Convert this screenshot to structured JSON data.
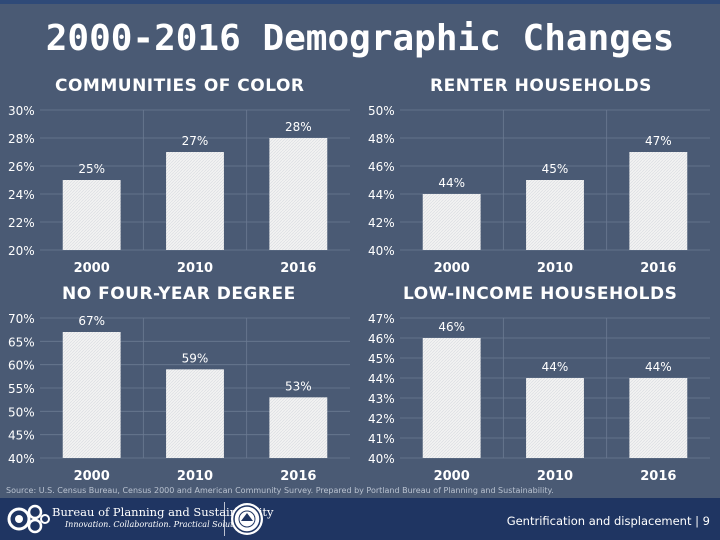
{
  "slide": {
    "title": "2000-2016 Demographic Changes",
    "source": "Source: U.S. Census Bureau, Census 2000 and American Community Survey. Prepared by Portland Bureau of Planning and Sustainability.",
    "footer_text": "Gentrification and displacement | 9",
    "org_name": "Bureau of Planning and Sustainability",
    "org_tagline": "Innovation. Collaboration. Practical Solutions."
  },
  "colors": {
    "background": "#4a5a74",
    "bar": "#f2f2f2",
    "grid": "#6b7a92",
    "footer": "#1f3562"
  },
  "chart_data": [
    {
      "type": "bar",
      "title": "COMMUNITIES OF COLOR",
      "categories": [
        "2000",
        "2010",
        "2016"
      ],
      "values": [
        25,
        27,
        28
      ],
      "labels": [
        "25%",
        "27%",
        "28%"
      ],
      "ylim": [
        20,
        30
      ],
      "yticks": [
        20,
        22,
        24,
        26,
        28,
        30
      ],
      "ytick_labels": [
        "20%",
        "22%",
        "24%",
        "26%",
        "28%",
        "30%"
      ]
    },
    {
      "type": "bar",
      "title": "RENTER HOUSEHOLDS",
      "categories": [
        "2000",
        "2010",
        "2016"
      ],
      "values": [
        44,
        45,
        47
      ],
      "labels": [
        "44%",
        "45%",
        "47%"
      ],
      "ylim": [
        40,
        50
      ],
      "yticks": [
        40,
        42,
        44,
        46,
        48,
        50
      ],
      "ytick_labels": [
        "40%",
        "42%",
        "44%",
        "46%",
        "48%",
        "50%"
      ]
    },
    {
      "type": "bar",
      "title": "NO FOUR-YEAR DEGREE",
      "categories": [
        "2000",
        "2010",
        "2016"
      ],
      "values": [
        67,
        59,
        53
      ],
      "labels": [
        "67%",
        "59%",
        "53%"
      ],
      "ylim": [
        40,
        70
      ],
      "yticks": [
        40,
        45,
        50,
        55,
        60,
        65,
        70
      ],
      "ytick_labels": [
        "40%",
        "45%",
        "50%",
        "55%",
        "60%",
        "65%",
        "70%"
      ]
    },
    {
      "type": "bar",
      "title": "LOW-INCOME HOUSEHOLDS",
      "categories": [
        "2000",
        "2010",
        "2016"
      ],
      "values": [
        46,
        44,
        44
      ],
      "labels": [
        "46%",
        "44%",
        "44%"
      ],
      "ylim": [
        40,
        47
      ],
      "yticks": [
        40,
        41,
        42,
        43,
        44,
        45,
        46,
        47
      ],
      "ytick_labels": [
        "40%",
        "41%",
        "42%",
        "43%",
        "44%",
        "45%",
        "46%",
        "47%"
      ]
    }
  ]
}
